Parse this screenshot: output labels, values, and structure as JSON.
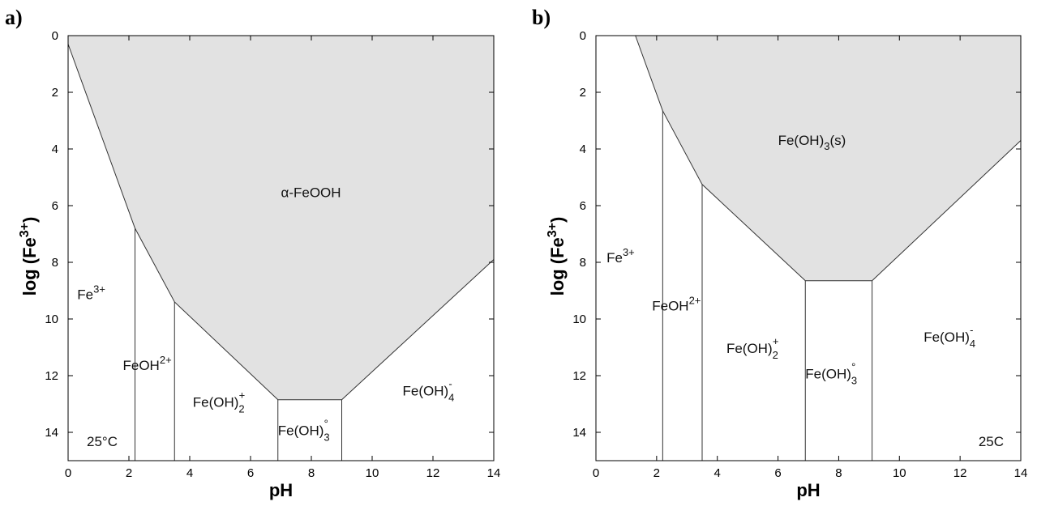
{
  "chart_data": [
    {
      "type": "area",
      "panel_label": "a)",
      "xlabel": "pH",
      "ylabel_main": "log (Fe",
      "ylabel_sup": "3+",
      "ylabel_close": ")",
      "xlim": [
        0,
        14
      ],
      "ylim": [
        0,
        15
      ],
      "y_inverted": true,
      "x_ticks": [
        0,
        2,
        4,
        6,
        8,
        10,
        12,
        14
      ],
      "y_ticks": [
        0,
        2,
        4,
        6,
        8,
        10,
        12,
        14
      ],
      "fill_color": "#e2e2e2",
      "solid_boundary": [
        [
          0,
          0.3
        ],
        [
          2.2,
          6.8
        ],
        [
          3.5,
          9.4
        ],
        [
          6.9,
          12.85
        ],
        [
          9.0,
          12.85
        ],
        [
          14,
          7.9
        ]
      ],
      "divider_lines": [
        2.2,
        3.5,
        6.9,
        9.0
      ],
      "temperature": "25°C",
      "regions": [
        {
          "text": "α-FeOOH",
          "sup": "",
          "sub": "",
          "x": 7.0,
          "y": 5.7
        },
        {
          "text": "Fe",
          "sup": "3+",
          "sub": "",
          "x": 0.3,
          "y": 9.3
        },
        {
          "text": "FeOH",
          "sup": "2+",
          "sub": "",
          "x": 1.8,
          "y": 11.8
        },
        {
          "text": "Fe(OH)",
          "sup": "+",
          "sub": "2",
          "x": 4.1,
          "y": 13.1
        },
        {
          "text": "Fe(OH)",
          "sup": "°",
          "sub": "3",
          "x": 6.9,
          "y": 14.1
        },
        {
          "text": "Fe(OH)",
          "sup": "-",
          "sub": "4",
          "x": 11.0,
          "y": 12.7
        }
      ]
    },
    {
      "type": "area",
      "panel_label": "b)",
      "xlabel": "pH",
      "ylabel_main": "log (Fe",
      "ylabel_sup": "3+",
      "ylabel_close": ")",
      "xlim": [
        0,
        14
      ],
      "ylim": [
        0,
        15
      ],
      "y_inverted": true,
      "x_ticks": [
        0,
        2,
        4,
        6,
        8,
        10,
        12,
        14
      ],
      "y_ticks": [
        0,
        2,
        4,
        6,
        8,
        10,
        12,
        14
      ],
      "fill_color": "#e2e2e2",
      "solid_boundary": [
        [
          1.3,
          0
        ],
        [
          2.2,
          2.65
        ],
        [
          3.5,
          5.25
        ],
        [
          6.9,
          8.65
        ],
        [
          9.1,
          8.65
        ],
        [
          14,
          3.7
        ]
      ],
      "divider_lines": [
        2.2,
        3.5,
        6.9,
        9.1
      ],
      "temperature": "25C",
      "regions": [
        {
          "text": "Fe(OH)",
          "sup": "",
          "sub": "3",
          "tail": "(s)",
          "x": 6.0,
          "y": 3.85
        },
        {
          "text": "Fe",
          "sup": "3+",
          "sub": "",
          "x": 0.35,
          "y": 8.0
        },
        {
          "text": "FeOH",
          "sup": "2+",
          "sub": "",
          "x": 1.85,
          "y": 9.7
        },
        {
          "text": "Fe(OH)",
          "sup": "+",
          "sub": "2",
          "x": 4.3,
          "y": 11.2
        },
        {
          "text": "Fe(OH)",
          "sup": "°",
          "sub": "3",
          "x": 6.9,
          "y": 12.1
        },
        {
          "text": "Fe(OH)",
          "sup": "-",
          "sub": "4",
          "x": 10.8,
          "y": 10.8
        }
      ]
    }
  ]
}
